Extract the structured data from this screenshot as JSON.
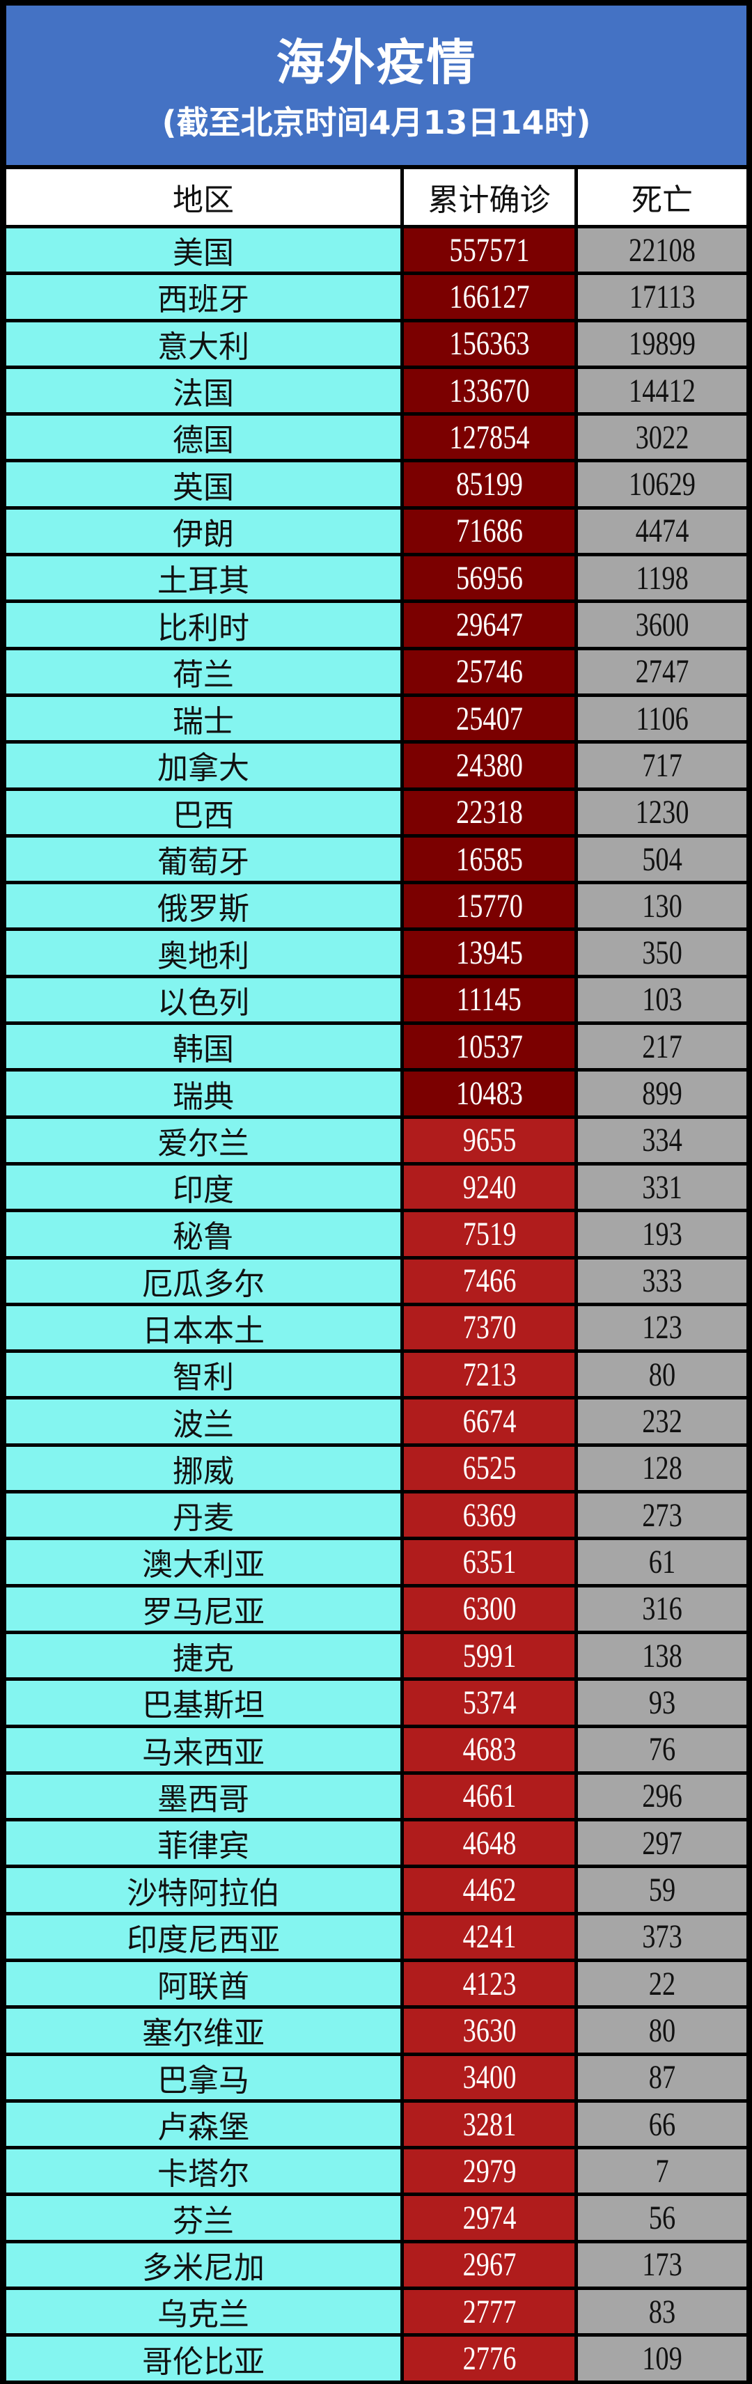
{
  "header": {
    "title": "海外疫情",
    "subtitle": "(截至北京时间4月13日14时)"
  },
  "columns": [
    "地区",
    "累计确诊",
    "死亡"
  ],
  "colors": {
    "banner": "#4472C4",
    "region_cell": "#84F5F0",
    "confirmed_high": "#7B0000",
    "confirmed_low": "#B01C1C",
    "deaths_cell": "#A6A6A6"
  },
  "rows": [
    [
      "美国",
      "557571",
      "22108"
    ],
    [
      "西班牙",
      "166127",
      "17113"
    ],
    [
      "意大利",
      "156363",
      "19899"
    ],
    [
      "法国",
      "133670",
      "14412"
    ],
    [
      "德国",
      "127854",
      "3022"
    ],
    [
      "英国",
      "85199",
      "10629"
    ],
    [
      "伊朗",
      "71686",
      "4474"
    ],
    [
      "土耳其",
      "56956",
      "1198"
    ],
    [
      "比利时",
      "29647",
      "3600"
    ],
    [
      "荷兰",
      "25746",
      "2747"
    ],
    [
      "瑞士",
      "25407",
      "1106"
    ],
    [
      "加拿大",
      "24380",
      "717"
    ],
    [
      "巴西",
      "22318",
      "1230"
    ],
    [
      "葡萄牙",
      "16585",
      "504"
    ],
    [
      "俄罗斯",
      "15770",
      "130"
    ],
    [
      "奥地利",
      "13945",
      "350"
    ],
    [
      "以色列",
      "11145",
      "103"
    ],
    [
      "韩国",
      "10537",
      "217"
    ],
    [
      "瑞典",
      "10483",
      "899"
    ],
    [
      "爱尔兰",
      "9655",
      "334"
    ],
    [
      "印度",
      "9240",
      "331"
    ],
    [
      "秘鲁",
      "7519",
      "193"
    ],
    [
      "厄瓜多尔",
      "7466",
      "333"
    ],
    [
      "日本本土",
      "7370",
      "123"
    ],
    [
      "智利",
      "7213",
      "80"
    ],
    [
      "波兰",
      "6674",
      "232"
    ],
    [
      "挪威",
      "6525",
      "128"
    ],
    [
      "丹麦",
      "6369",
      "273"
    ],
    [
      "澳大利亚",
      "6351",
      "61"
    ],
    [
      "罗马尼亚",
      "6300",
      "316"
    ],
    [
      "捷克",
      "5991",
      "138"
    ],
    [
      "巴基斯坦",
      "5374",
      "93"
    ],
    [
      "马来西亚",
      "4683",
      "76"
    ],
    [
      "墨西哥",
      "4661",
      "296"
    ],
    [
      "菲律宾",
      "4648",
      "297"
    ],
    [
      "沙特阿拉伯",
      "4462",
      "59"
    ],
    [
      "印度尼西亚",
      "4241",
      "373"
    ],
    [
      "阿联酋",
      "4123",
      "22"
    ],
    [
      "塞尔维亚",
      "3630",
      "80"
    ],
    [
      "巴拿马",
      "3400",
      "87"
    ],
    [
      "卢森堡",
      "3281",
      "66"
    ],
    [
      "卡塔尔",
      "2979",
      "7"
    ],
    [
      "芬兰",
      "2974",
      "56"
    ],
    [
      "多米尼加",
      "2967",
      "173"
    ],
    [
      "乌克兰",
      "2777",
      "83"
    ],
    [
      "哥伦比亚",
      "2776",
      "109"
    ]
  ]
}
